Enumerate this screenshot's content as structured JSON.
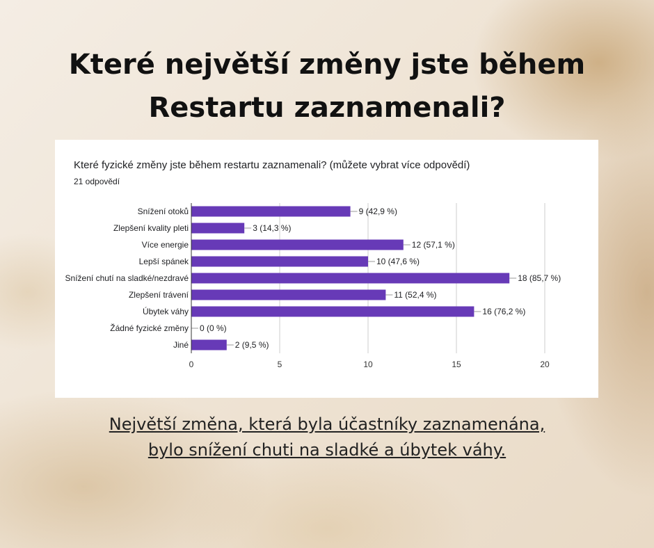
{
  "headline": "Které největší změny jste během Restartu zaznamenali?",
  "card": {
    "title": "Které fyzické změny jste během restartu zaznamenali? (můžete vybrat více odpovědí)",
    "responses": "21 odpovědí"
  },
  "conclusion": "Největší změna, která byla účastníky zaznamenána, bylo snížení chuti na sladké a úbytek váhy.",
  "colors": {
    "bar": "#673ab7",
    "grid": "#cccccc",
    "axis": "#333333",
    "text": "#202124"
  },
  "chart_data": {
    "type": "bar",
    "orientation": "horizontal",
    "categories": [
      "Snížení otoků",
      "Zlepšení kvality pleti",
      "Více energie",
      "Lepší spánek",
      "Snížení chutí na sladké/nezdravé",
      "Zlepšení trávení",
      "Úbytek váhy",
      "Žádné fyzické změny",
      "Jiné"
    ],
    "values": [
      9,
      3,
      12,
      10,
      18,
      11,
      16,
      0,
      2
    ],
    "data_labels": [
      "9 (42,9 %)",
      "3 (14,3 %)",
      "12 (57,1 %)",
      "10 (47,6 %)",
      "18 (85,7 %)",
      "11 (52,4 %)",
      "16 (76,2 %)",
      "0 (0 %)",
      "2 (9,5 %)"
    ],
    "xlim": [
      0,
      20
    ],
    "xticks": [
      0,
      5,
      10,
      15,
      20
    ],
    "grid": true,
    "legend": "none"
  }
}
